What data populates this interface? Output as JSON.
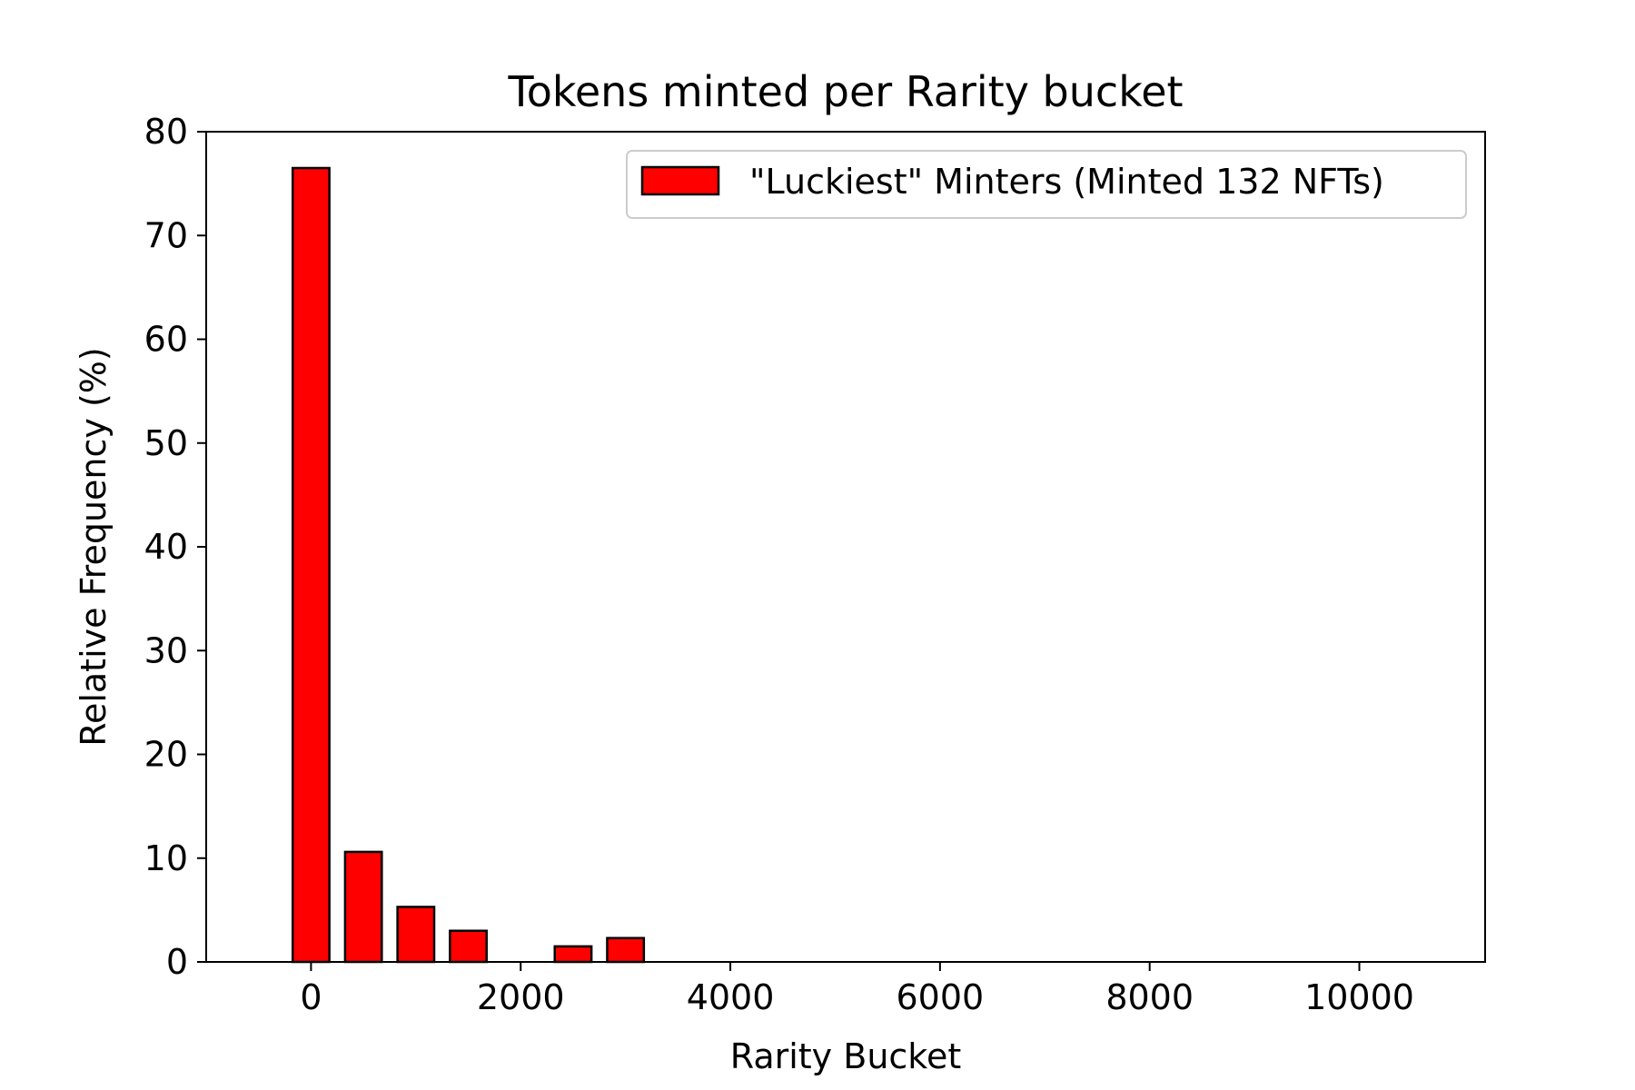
{
  "chart_data": {
    "type": "bar",
    "title": "Tokens minted per Rarity bucket",
    "xlabel": "Rarity Bucket",
    "ylabel": "Relative Frequency (%)",
    "xlim": [
      -1000,
      11200
    ],
    "ylim": [
      0,
      80
    ],
    "xticks": [
      0,
      2000,
      4000,
      6000,
      8000,
      10000
    ],
    "yticks": [
      0,
      10,
      20,
      30,
      40,
      50,
      60,
      70,
      80
    ],
    "bar_width": 350,
    "grid": false,
    "legend_position": "upper right",
    "series": [
      {
        "name": "\"Luckiest\" Minters (Minted 132 NFTs)",
        "color": "#ff0000",
        "edge_color": "#000000",
        "x": [
          0,
          500,
          1000,
          1500,
          2000,
          2500,
          3000,
          3500,
          4000,
          4500,
          5000,
          5500,
          6000,
          6500,
          7000,
          7500,
          8000,
          8500,
          9000,
          9500
        ],
        "values": [
          76.5,
          10.6,
          5.3,
          3.0,
          0,
          1.5,
          2.3,
          0,
          0,
          0,
          0,
          0,
          0,
          0,
          0,
          0,
          0,
          0,
          0,
          0
        ]
      }
    ]
  }
}
